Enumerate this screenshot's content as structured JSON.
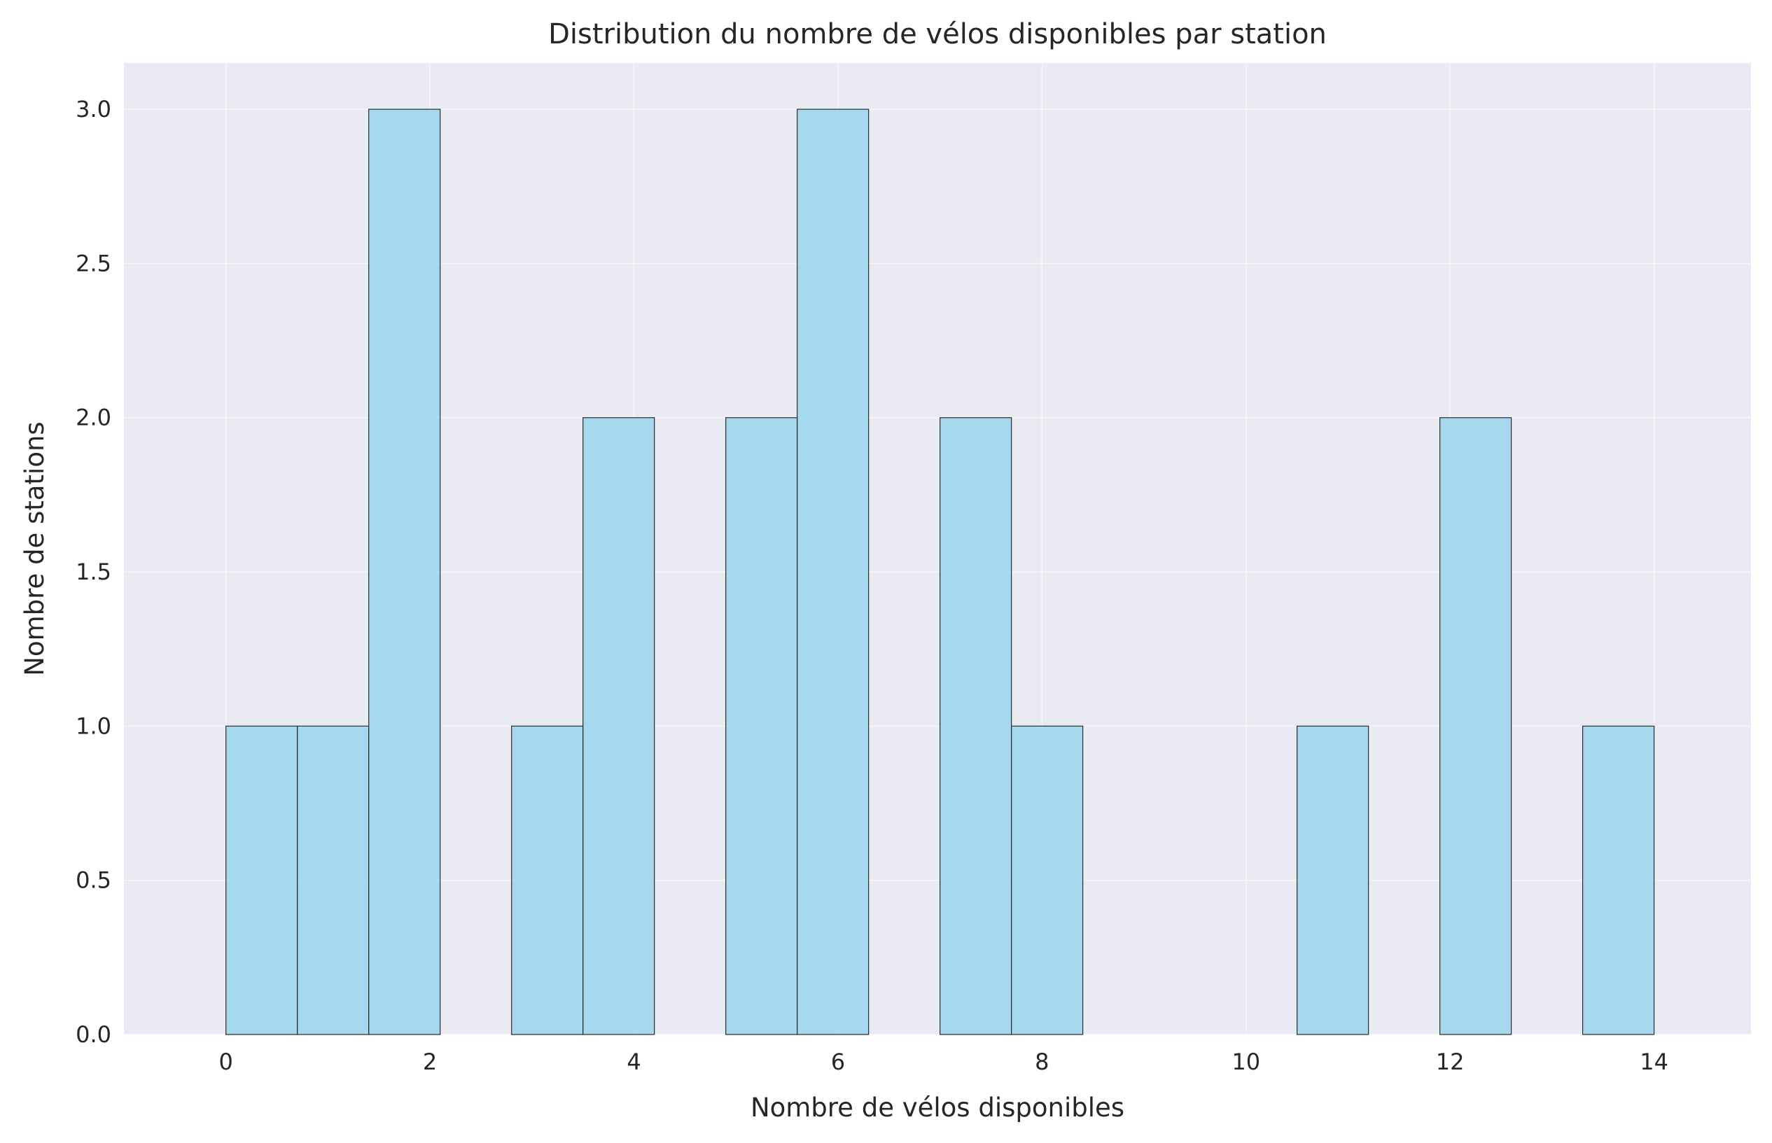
{
  "chart_data": {
    "type": "bar",
    "title": "Distribution du nombre de vélos disponibles par station",
    "xlabel": "Nombre de vélos disponibles",
    "ylabel": "Nombre de stations",
    "xlim": [
      -1,
      14.95
    ],
    "ylim": [
      0,
      3.15
    ],
    "x_ticks": [
      "0",
      "2",
      "4",
      "6",
      "8",
      "10",
      "12",
      "14"
    ],
    "y_ticks": [
      "0.0",
      "0.5",
      "1.0",
      "1.5",
      "2.0",
      "2.5",
      "3.0"
    ],
    "bin_edges": [
      0,
      0.7,
      1.4,
      2.1,
      2.8,
      3.5,
      4.2,
      4.9,
      5.6,
      6.3,
      7.0,
      7.7,
      8.4,
      9.1,
      9.8,
      10.5,
      11.2,
      11.9,
      12.6,
      13.3,
      14.0
    ],
    "values": [
      1,
      1,
      3,
      0,
      1,
      2,
      0,
      2,
      3,
      0,
      2,
      1,
      0,
      0,
      0,
      1,
      0,
      2,
      0,
      1
    ],
    "bar_color": "#87CEEB",
    "edge_color": "#2b2b2b",
    "plot_background": "#EAEAF2",
    "grid": true
  }
}
